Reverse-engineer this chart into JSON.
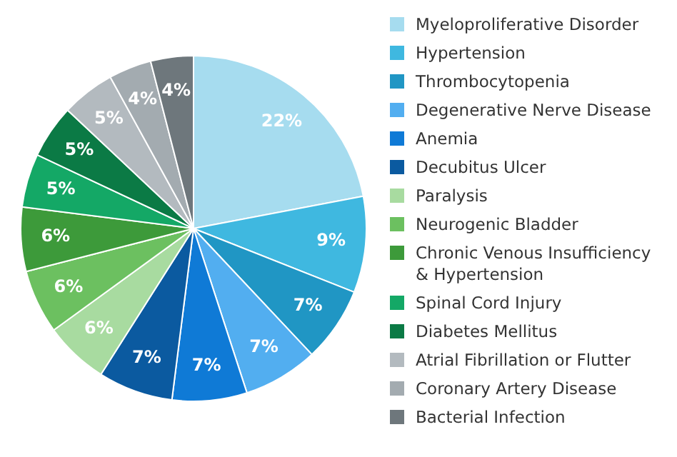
{
  "chart_data": {
    "type": "pie",
    "categories": [
      "Myeloproliferative Disorder",
      "Hypertension",
      "Thrombocytopenia",
      "Degenerative Nerve Disease",
      "Anemia",
      "Decubitus Ulcer",
      "Paralysis",
      "Neurogenic Bladder",
      "Chronic Venous Insufficiency & Hypertension",
      "Spinal Cord Injury",
      "Diabetes Mellitus",
      "Atrial Fibrillation or Flutter",
      "Coronary Artery Disease",
      "Bacterial Infection"
    ],
    "values": [
      22,
      9,
      7,
      7,
      7,
      7,
      6,
      6,
      6,
      5,
      5,
      5,
      4,
      4
    ],
    "colors": [
      "#a6dcef",
      "#3fb8e0",
      "#2096c4",
      "#52aef0",
      "#0f7ad6",
      "#0b5aa0",
      "#a8dba0",
      "#6cc060",
      "#3d9a3a",
      "#14a866",
      "#0b7a45",
      "#b3babf",
      "#a3abb0",
      "#6e777c"
    ],
    "value_labels": [
      "22%",
      "9%",
      "7%",
      "7%",
      "7%",
      "7%",
      "6%",
      "6%",
      "6%",
      "5%",
      "5%",
      "5%",
      "4%",
      "4%"
    ],
    "legend": "right"
  }
}
